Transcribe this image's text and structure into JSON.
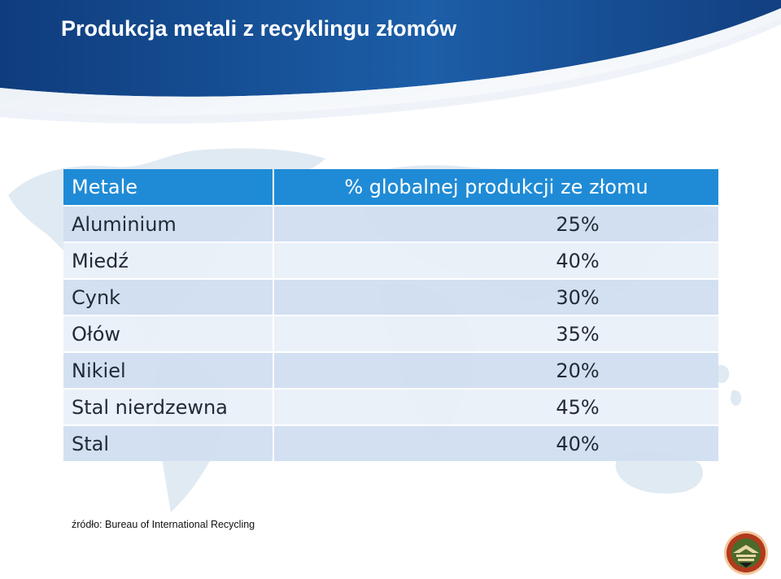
{
  "slide": {
    "title": "Produkcja metali z recyklingu złomów"
  },
  "table": {
    "headers": {
      "metal": "Metale",
      "percent": "% globalnej produkcji ze złomu"
    },
    "rows": [
      {
        "metal": "Aluminium",
        "percent": "25%"
      },
      {
        "metal": "Miedź",
        "percent": "40%"
      },
      {
        "metal": "Cynk",
        "percent": "30%"
      },
      {
        "metal": "Ołów",
        "percent": "35%"
      },
      {
        "metal": "Nikiel",
        "percent": "20%"
      },
      {
        "metal": "Stal nierdzewna",
        "percent": "45%"
      },
      {
        "metal": "Stal",
        "percent": "40%"
      }
    ]
  },
  "footer": {
    "source": "źródło: Bureau of International Recycling"
  },
  "colors": {
    "header_dark": "#0e3a78",
    "header_light": "#1f6bb6",
    "table_header": "#1f8bd6",
    "row_odd": "#cfdcf0",
    "row_even": "#e9f0f9"
  },
  "icons": [
    "world-map-graphic",
    "recycling-logo-icon"
  ]
}
